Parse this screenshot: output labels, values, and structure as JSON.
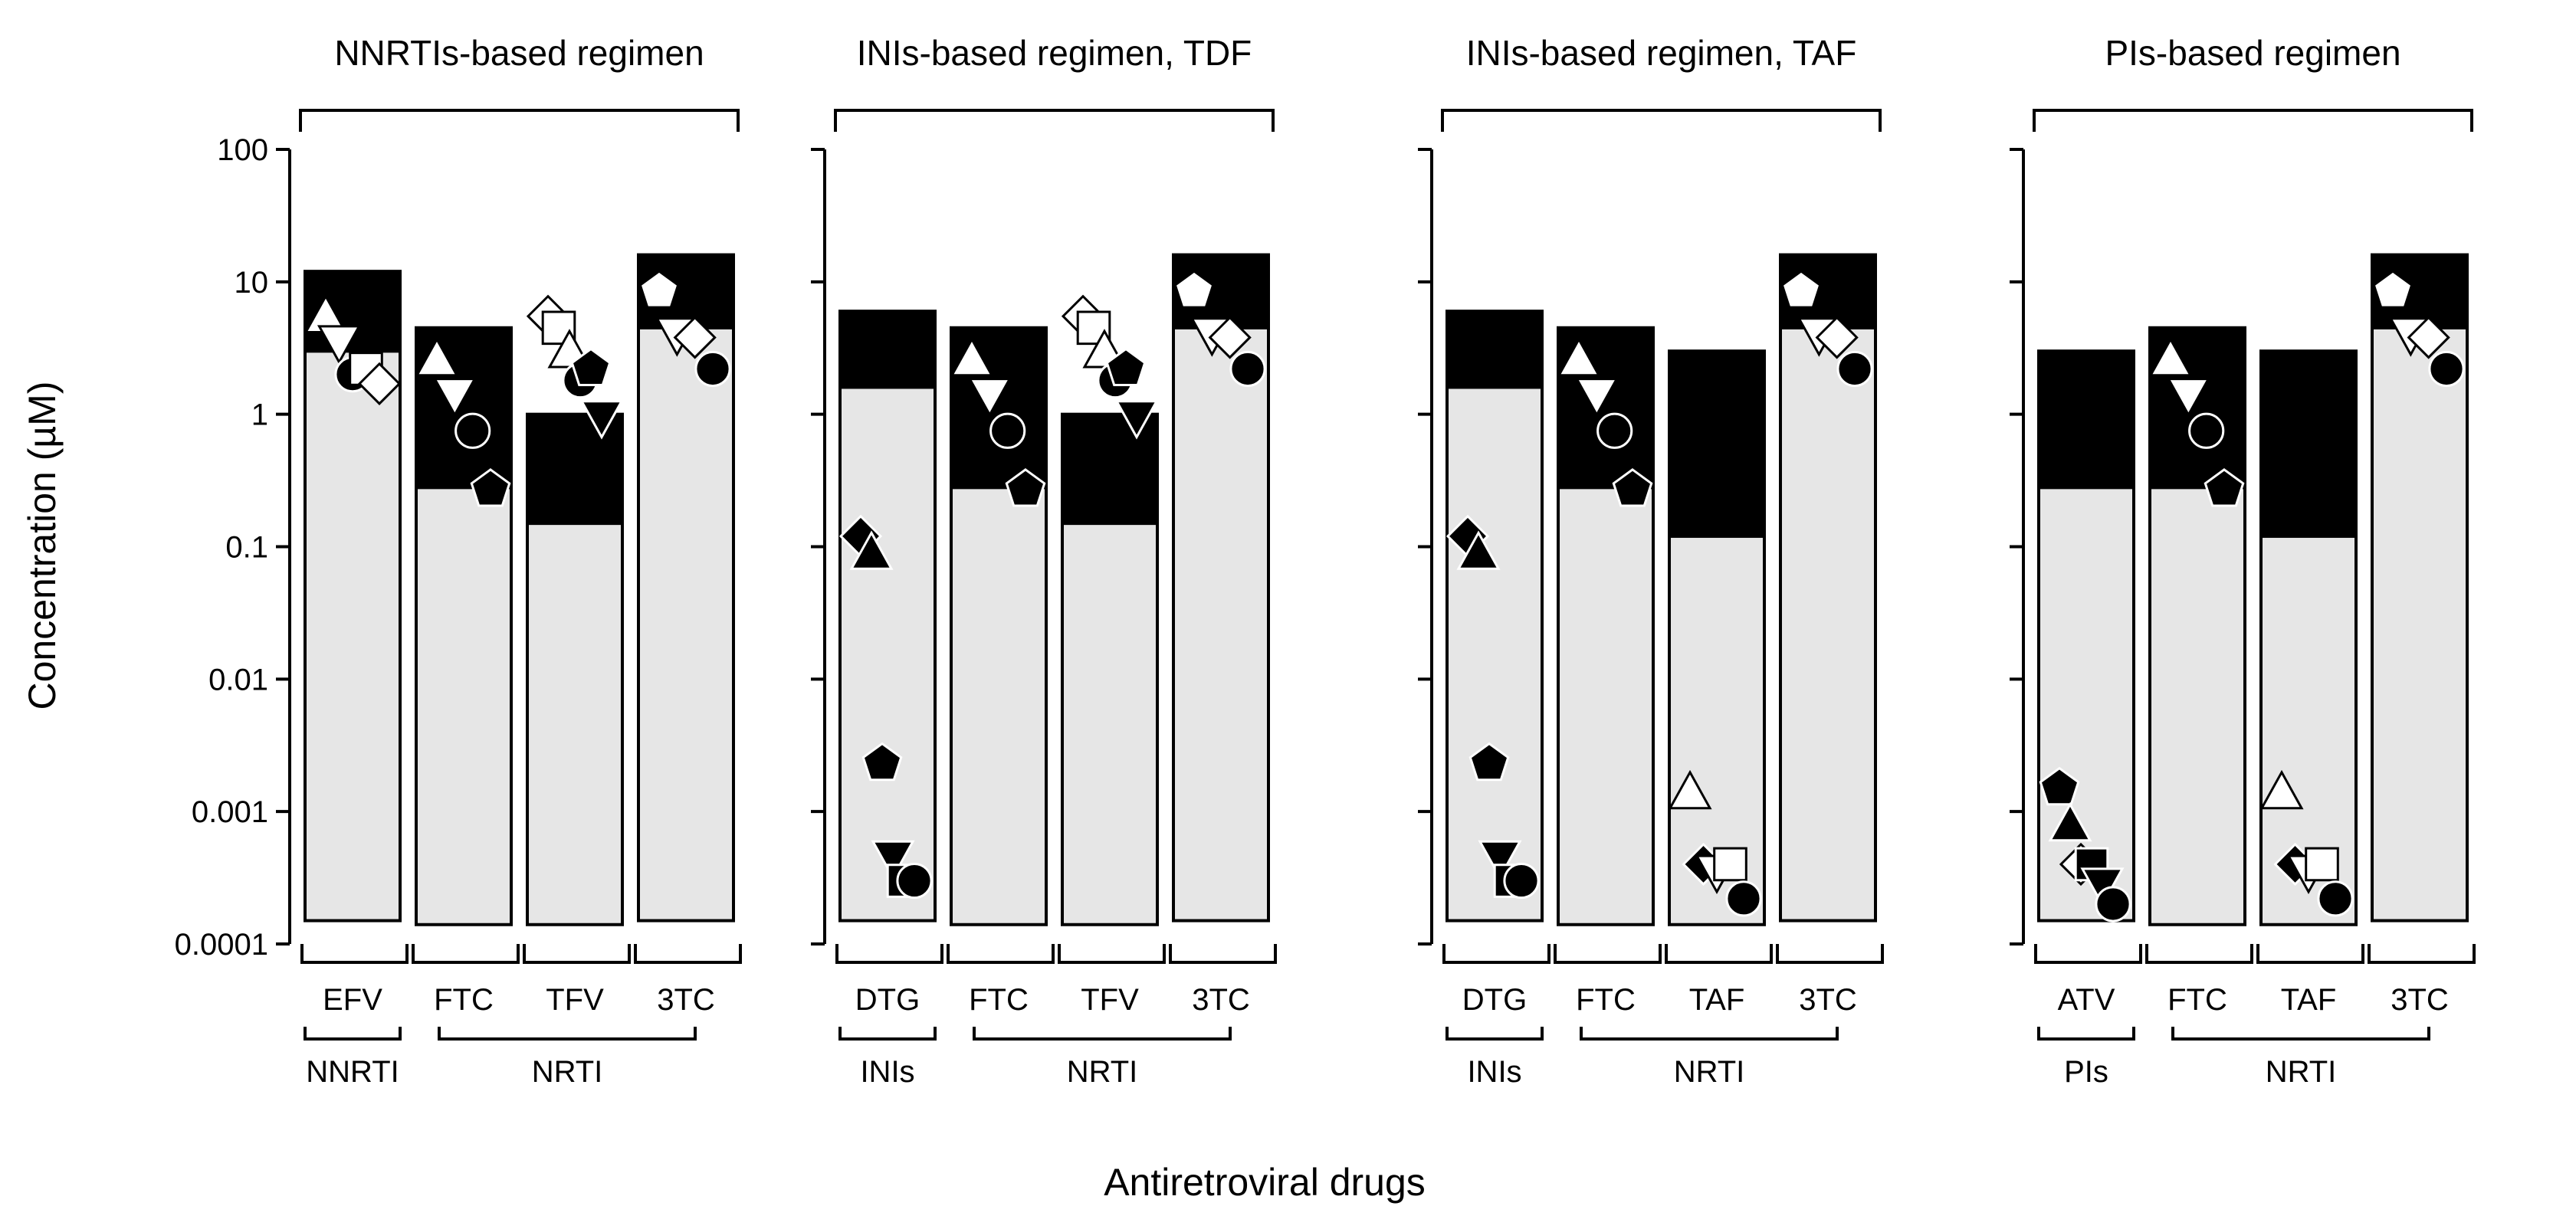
{
  "chart_data": {
    "type": "bar",
    "scale": "log",
    "ylabel": "Concentration (µM)",
    "xlabel": "Antiretroviral drugs",
    "ylim": [
      0.0001,
      100
    ],
    "ticks": [
      "100",
      "10",
      "1",
      "0.1",
      "0.01",
      "0.001",
      "0.0001"
    ],
    "panels": [
      {
        "title": "NNRTIs-based regimen",
        "bars": [
          {
            "label": "EFV",
            "low": 0.00015,
            "mid": 3.0,
            "high": 12,
            "markers": [
              {
                "shape": "triangle-up",
                "fill": "white",
                "value": 5.5
              },
              {
                "shape": "triangle-down",
                "fill": "white",
                "value": 3.5
              },
              {
                "shape": "circle",
                "fill": "black",
                "value": 2.0
              },
              {
                "shape": "square",
                "fill": "white",
                "value": 2.2
              },
              {
                "shape": "diamond",
                "fill": "white",
                "value": 1.7
              }
            ]
          },
          {
            "label": "FTC",
            "low": 0.00014,
            "mid": 0.28,
            "high": 4.5,
            "markers": [
              {
                "shape": "triangle-up",
                "fill": "white",
                "value": 2.6
              },
              {
                "shape": "triangle-down",
                "fill": "white",
                "value": 1.4
              },
              {
                "shape": "circle",
                "fill": "black",
                "value": 0.75
              },
              {
                "shape": "pentagon",
                "fill": "black",
                "value": 0.27
              }
            ]
          },
          {
            "label": "TFV",
            "low": 0.00014,
            "mid": 0.15,
            "high": 1.0,
            "markers": [
              {
                "shape": "diamond",
                "fill": "white",
                "value": 5.5
              },
              {
                "shape": "square",
                "fill": "white",
                "value": 4.5
              },
              {
                "shape": "triangle-up",
                "fill": "white",
                "value": 3.0
              },
              {
                "shape": "circle",
                "fill": "black",
                "value": 1.8
              },
              {
                "shape": "pentagon",
                "fill": "black",
                "value": 2.2
              },
              {
                "shape": "triangle-down",
                "fill": "black",
                "value": 0.95
              }
            ]
          },
          {
            "label": "3TC",
            "low": 0.00015,
            "mid": 4.5,
            "high": 16,
            "markers": [
              {
                "shape": "pentagon",
                "fill": "white",
                "value": 8.5
              },
              {
                "shape": "triangle-down",
                "fill": "white",
                "value": 4.0
              },
              {
                "shape": "diamond",
                "fill": "white",
                "value": 3.8
              },
              {
                "shape": "circle",
                "fill": "black",
                "value": 2.2
              }
            ]
          }
        ],
        "groups": [
          {
            "label": "NNRTI",
            "from": 0,
            "to": 0
          },
          {
            "label": "NRTI",
            "from": 1,
            "to": 3
          }
        ]
      },
      {
        "title": "INIs-based regimen, TDF",
        "bars": [
          {
            "label": "DTG",
            "low": 0.00015,
            "mid": 1.6,
            "high": 6.0,
            "markers": [
              {
                "shape": "diamond",
                "fill": "black",
                "value": 0.12
              },
              {
                "shape": "triangle-up",
                "fill": "black",
                "value": 0.09
              },
              {
                "shape": "pentagon",
                "fill": "black",
                "value": 0.0023
              },
              {
                "shape": "triangle-down",
                "fill": "black",
                "value": 0.00045
              },
              {
                "shape": "square",
                "fill": "black",
                "value": 0.0003
              },
              {
                "shape": "circle",
                "fill": "black",
                "value": 0.0003
              }
            ]
          },
          {
            "label": "FTC",
            "low": 0.00014,
            "mid": 0.28,
            "high": 4.5,
            "markers": [
              {
                "shape": "triangle-up",
                "fill": "white",
                "value": 2.6
              },
              {
                "shape": "triangle-down",
                "fill": "white",
                "value": 1.4
              },
              {
                "shape": "circle",
                "fill": "black",
                "value": 0.75
              },
              {
                "shape": "pentagon",
                "fill": "black",
                "value": 0.27
              }
            ]
          },
          {
            "label": "TFV",
            "low": 0.00014,
            "mid": 0.15,
            "high": 1.0,
            "markers": [
              {
                "shape": "diamond",
                "fill": "white",
                "value": 5.5
              },
              {
                "shape": "square",
                "fill": "white",
                "value": 4.5
              },
              {
                "shape": "triangle-up",
                "fill": "white",
                "value": 3.0
              },
              {
                "shape": "circle",
                "fill": "black",
                "value": 1.8
              },
              {
                "shape": "pentagon",
                "fill": "black",
                "value": 2.2
              },
              {
                "shape": "triangle-down",
                "fill": "black",
                "value": 0.95
              }
            ]
          },
          {
            "label": "3TC",
            "low": 0.00015,
            "mid": 4.5,
            "high": 16,
            "markers": [
              {
                "shape": "pentagon",
                "fill": "white",
                "value": 8.5
              },
              {
                "shape": "triangle-down",
                "fill": "white",
                "value": 4.0
              },
              {
                "shape": "diamond",
                "fill": "white",
                "value": 3.8
              },
              {
                "shape": "circle",
                "fill": "black",
                "value": 2.2
              }
            ]
          }
        ],
        "groups": [
          {
            "label": "INIs",
            "from": 0,
            "to": 0
          },
          {
            "label": "NRTI",
            "from": 1,
            "to": 3
          }
        ]
      },
      {
        "title": "INIs-based regimen, TAF",
        "bars": [
          {
            "label": "DTG",
            "low": 0.00015,
            "mid": 1.6,
            "high": 6.0,
            "markers": [
              {
                "shape": "diamond",
                "fill": "black",
                "value": 0.12
              },
              {
                "shape": "triangle-up",
                "fill": "black",
                "value": 0.09
              },
              {
                "shape": "pentagon",
                "fill": "black",
                "value": 0.0023
              },
              {
                "shape": "triangle-down",
                "fill": "black",
                "value": 0.00045
              },
              {
                "shape": "square",
                "fill": "black",
                "value": 0.0003
              },
              {
                "shape": "circle",
                "fill": "black",
                "value": 0.0003
              }
            ]
          },
          {
            "label": "FTC",
            "low": 0.00014,
            "mid": 0.28,
            "high": 4.5,
            "markers": [
              {
                "shape": "triangle-up",
                "fill": "white",
                "value": 2.6
              },
              {
                "shape": "triangle-down",
                "fill": "white",
                "value": 1.4
              },
              {
                "shape": "circle",
                "fill": "black",
                "value": 0.75
              },
              {
                "shape": "pentagon",
                "fill": "black",
                "value": 0.27
              }
            ]
          },
          {
            "label": "TAF",
            "low": 0.00014,
            "mid": 0.12,
            "high": 3.0,
            "markers": [
              {
                "shape": "triangle-up",
                "fill": "white",
                "value": 0.0014
              },
              {
                "shape": "diamond",
                "fill": "black",
                "value": 0.0004
              },
              {
                "shape": "triangle-down",
                "fill": "white",
                "value": 0.00035
              },
              {
                "shape": "square",
                "fill": "white",
                "value": 0.0004
              },
              {
                "shape": "circle",
                "fill": "black",
                "value": 0.00022
              }
            ]
          },
          {
            "label": "3TC",
            "low": 0.00015,
            "mid": 4.5,
            "high": 16,
            "markers": [
              {
                "shape": "pentagon",
                "fill": "white",
                "value": 8.5
              },
              {
                "shape": "triangle-down",
                "fill": "white",
                "value": 4.0
              },
              {
                "shape": "diamond",
                "fill": "white",
                "value": 3.8
              },
              {
                "shape": "circle",
                "fill": "black",
                "value": 2.2
              }
            ]
          }
        ],
        "groups": [
          {
            "label": "INIs",
            "from": 0,
            "to": 0
          },
          {
            "label": "NRTI",
            "from": 1,
            "to": 3
          }
        ]
      },
      {
        "title": "PIs-based regimen",
        "bars": [
          {
            "label": "ATV",
            "low": 0.00015,
            "mid": 0.28,
            "high": 3.0,
            "markers": [
              {
                "shape": "pentagon",
                "fill": "black",
                "value": 0.0015
              },
              {
                "shape": "triangle-up",
                "fill": "black",
                "value": 0.0008
              },
              {
                "shape": "diamond",
                "fill": "white",
                "value": 0.0004
              },
              {
                "shape": "square",
                "fill": "black",
                "value": 0.0004
              },
              {
                "shape": "triangle-down",
                "fill": "black",
                "value": 0.00028
              },
              {
                "shape": "circle",
                "fill": "black",
                "value": 0.0002
              }
            ]
          },
          {
            "label": "FTC",
            "low": 0.00014,
            "mid": 0.28,
            "high": 4.5,
            "markers": [
              {
                "shape": "triangle-up",
                "fill": "white",
                "value": 2.6
              },
              {
                "shape": "triangle-down",
                "fill": "white",
                "value": 1.4
              },
              {
                "shape": "circle",
                "fill": "black",
                "value": 0.75
              },
              {
                "shape": "pentagon",
                "fill": "black",
                "value": 0.27
              }
            ]
          },
          {
            "label": "TAF",
            "low": 0.00014,
            "mid": 0.12,
            "high": 3.0,
            "markers": [
              {
                "shape": "triangle-up",
                "fill": "white",
                "value": 0.0014
              },
              {
                "shape": "diamond",
                "fill": "black",
                "value": 0.0004
              },
              {
                "shape": "triangle-down",
                "fill": "white",
                "value": 0.00035
              },
              {
                "shape": "square",
                "fill": "white",
                "value": 0.0004
              },
              {
                "shape": "circle",
                "fill": "black",
                "value": 0.00022
              }
            ]
          },
          {
            "label": "3TC",
            "low": 0.00015,
            "mid": 4.5,
            "high": 16,
            "markers": [
              {
                "shape": "pentagon",
                "fill": "white",
                "value": 8.5
              },
              {
                "shape": "triangle-down",
                "fill": "white",
                "value": 4.0
              },
              {
                "shape": "diamond",
                "fill": "white",
                "value": 3.8
              },
              {
                "shape": "circle",
                "fill": "black",
                "value": 2.2
              }
            ]
          }
        ],
        "groups": [
          {
            "label": "PIs",
            "from": 0,
            "to": 0
          },
          {
            "label": "NRTI",
            "from": 1,
            "to": 3
          }
        ]
      }
    ]
  },
  "colors": {
    "light_bar": "#e6e6e6",
    "dark_bar": "#000000",
    "axis": "#000000"
  }
}
